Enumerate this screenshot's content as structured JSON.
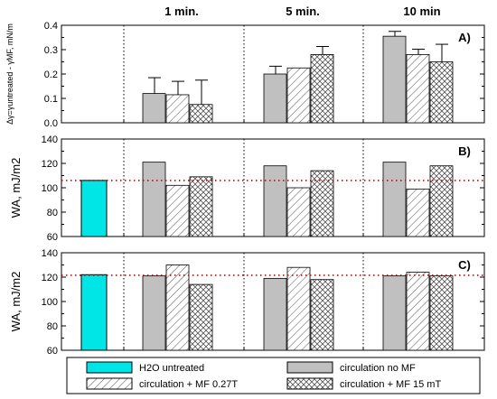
{
  "chart_data": [
    {
      "type": "bar",
      "panel_label": "A)",
      "ylabel": "Δγ=γuntreated - γMF, mN/m",
      "ylim": [
        0,
        0.4
      ],
      "yticks": [
        0.0,
        0.1,
        0.2,
        0.3,
        0.4
      ],
      "group_labels": [
        "1 min.",
        "5 min.",
        "10 min"
      ],
      "reference_value": null,
      "untreated_value": null,
      "groups": [
        {
          "label": "1 min.",
          "values": [
            0.12,
            0.115,
            0.075
          ],
          "errors": [
            0.065,
            0.055,
            0.1
          ]
        },
        {
          "label": "5 min.",
          "values": [
            0.2,
            0.225,
            0.28
          ],
          "errors": [
            0.032,
            0.0,
            0.033
          ]
        },
        {
          "label": "10 min",
          "values": [
            0.355,
            0.28,
            0.25
          ],
          "errors": [
            0.02,
            0.022,
            0.072
          ]
        }
      ]
    },
    {
      "type": "bar",
      "panel_label": "B)",
      "ylabel": "WA, mJ/m2",
      "ylim": [
        60,
        140
      ],
      "yticks": [
        60,
        80,
        100,
        120,
        140
      ],
      "reference_value": 106,
      "untreated_value": 106,
      "groups": [
        {
          "label": "1 min.",
          "values": [
            121,
            102,
            109
          ]
        },
        {
          "label": "5 min.",
          "values": [
            118,
            100,
            114
          ]
        },
        {
          "label": "10 min",
          "values": [
            121,
            99,
            118
          ]
        }
      ]
    },
    {
      "type": "bar",
      "panel_label": "C)",
      "ylabel": "WA, mJ/m2",
      "ylim": [
        60,
        140
      ],
      "yticks": [
        60,
        80,
        100,
        120,
        140
      ],
      "reference_value": 121.5,
      "untreated_value": 122,
      "groups": [
        {
          "label": "1 min.",
          "values": [
            121,
            130,
            114
          ]
        },
        {
          "label": "5 min.",
          "values": [
            119,
            128,
            118
          ]
        },
        {
          "label": "10 min",
          "values": [
            121,
            124,
            121
          ]
        }
      ]
    }
  ],
  "legend": {
    "placement": "bottom",
    "items": [
      {
        "key": "untreated",
        "label": "H2O untreated",
        "fill": "#00e5e5"
      },
      {
        "key": "circ",
        "label": "circulation no MF",
        "fill": "#c0c0c0"
      },
      {
        "key": "mf027",
        "label": "circulation + MF 0.27T",
        "fill": "hatch-diagonal"
      },
      {
        "key": "mf15",
        "label": "circulation + MF 15 mT",
        "fill": "hatch-cross"
      }
    ]
  },
  "colors": {
    "untreated": "#00e5e5",
    "circulation": "#c0c0c0",
    "reference_line": "#d00000"
  }
}
